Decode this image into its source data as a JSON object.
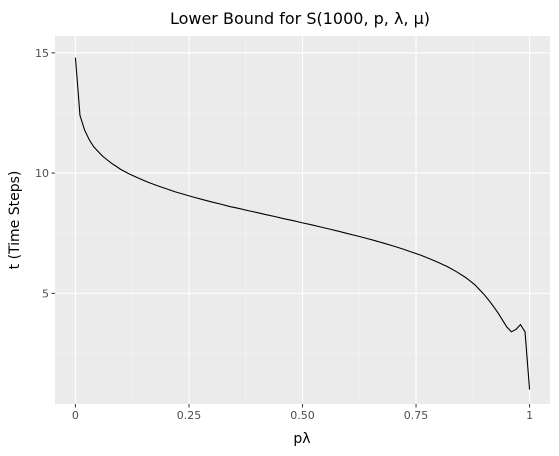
{
  "chart_data": {
    "type": "line",
    "title": "Lower Bound for S(1000, p, λ, μ)",
    "xlabel": "pλ",
    "ylabel": "t (Time Steps)",
    "xlim": [
      -0.045,
      1.045
    ],
    "ylim": [
      0.4,
      15.7
    ],
    "x_ticks": [
      0,
      0.25,
      0.5,
      0.75,
      1
    ],
    "x_tick_labels": [
      "0",
      "0.25",
      "0.50",
      "0.75",
      "1"
    ],
    "x_minor_ticks": [
      0.125,
      0.375,
      0.625,
      0.875
    ],
    "y_ticks": [
      5,
      10,
      15
    ],
    "y_tick_labels": [
      "5",
      "10",
      "15"
    ],
    "y_minor_ticks": [
      2.5,
      7.5,
      12.5
    ],
    "grid": true,
    "legend": "none",
    "colors": {
      "panel_background": "#ebebeb",
      "grid_major": "#ffffff",
      "grid_minor": "#f5f5f5",
      "line": "#000000"
    },
    "series": [
      {
        "x": [
          0,
          0.01,
          0.02,
          0.03,
          0.04,
          0.05,
          0.06,
          0.07,
          0.08,
          0.09,
          0.1,
          0.12,
          0.14,
          0.16,
          0.18,
          0.2,
          0.22,
          0.24,
          0.26,
          0.28,
          0.3,
          0.32,
          0.34,
          0.36,
          0.38,
          0.4,
          0.42,
          0.44,
          0.46,
          0.48,
          0.5,
          0.52,
          0.54,
          0.56,
          0.58,
          0.6,
          0.62,
          0.64,
          0.66,
          0.68,
          0.7,
          0.72,
          0.74,
          0.76,
          0.78,
          0.8,
          0.82,
          0.84,
          0.86,
          0.88,
          0.9,
          0.91,
          0.92,
          0.93,
          0.94,
          0.95,
          0.96,
          0.97,
          0.98,
          0.99,
          1
        ],
        "y": [
          14.8,
          12.4,
          11.8,
          11.4,
          11.1,
          10.9,
          10.7,
          10.55,
          10.4,
          10.28,
          10.15,
          9.95,
          9.78,
          9.62,
          9.48,
          9.35,
          9.22,
          9.11,
          9.0,
          8.9,
          8.8,
          8.71,
          8.61,
          8.53,
          8.44,
          8.36,
          8.27,
          8.19,
          8.1,
          8.02,
          7.93,
          7.85,
          7.76,
          7.67,
          7.58,
          7.48,
          7.39,
          7.29,
          7.19,
          7.08,
          6.97,
          6.85,
          6.72,
          6.59,
          6.44,
          6.28,
          6.1,
          5.89,
          5.65,
          5.35,
          4.95,
          4.72,
          4.47,
          4.2,
          3.9,
          3.6,
          3.4,
          3.5,
          3.7,
          3.4,
          1.0
        ]
      }
    ]
  }
}
